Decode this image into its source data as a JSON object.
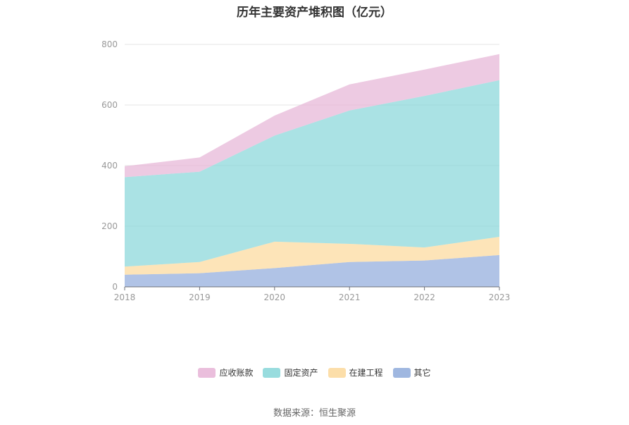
{
  "chart_data": {
    "type": "area",
    "stacked": true,
    "title": "历年主要资产堆积图（亿元）",
    "x": [
      "2018",
      "2019",
      "2020",
      "2021",
      "2022",
      "2023"
    ],
    "ylim": [
      0,
      800
    ],
    "yticks": [
      0,
      200,
      400,
      600,
      800
    ],
    "grid": true,
    "legend_position": "bottom",
    "series": [
      {
        "name": "其它",
        "color": "#8eaadb",
        "values": [
          40,
          45,
          62,
          82,
          87,
          105
        ]
      },
      {
        "name": "在建工程",
        "color": "#fcd89a",
        "values": [
          27,
          37,
          87,
          60,
          43,
          60
        ]
      },
      {
        "name": "固定资产",
        "color": "#86d6d8",
        "values": [
          295,
          298,
          350,
          440,
          500,
          517
        ]
      },
      {
        "name": "应收账款",
        "color": "#e6b3d6",
        "values": [
          36,
          47,
          66,
          86,
          87,
          86
        ]
      }
    ]
  },
  "legend_order": [
    "应收账款",
    "固定资产",
    "在建工程",
    "其它"
  ],
  "source": "数据来源：恒生聚源"
}
